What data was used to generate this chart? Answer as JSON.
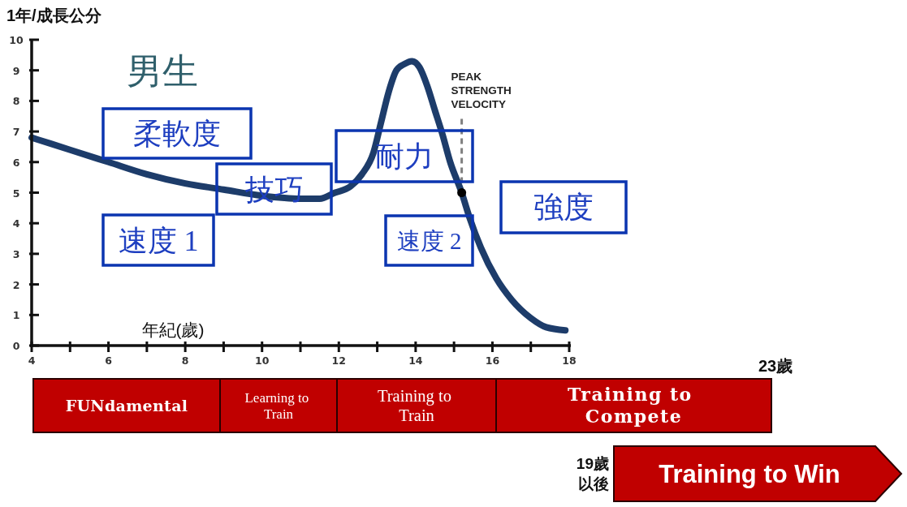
{
  "chart_data": {
    "type": "line",
    "title": "男生",
    "xlabel": "年紀(歲)",
    "ylabel": "1年/成長公分",
    "xlim": [
      4,
      18
    ],
    "ylim": [
      0,
      10
    ],
    "xticks": [
      4,
      {
        "value": 5,
        "label": null
      },
      6,
      {
        "value": 7,
        "label": null
      },
      8,
      {
        "value": 9,
        "label": null
      },
      10,
      {
        "value": 11,
        "label": null
      },
      12,
      {
        "value": 13,
        "label": null
      },
      14,
      {
        "value": 15,
        "label": null
      },
      16,
      {
        "value": 17,
        "label": null
      },
      18
    ],
    "yticks": [
      0,
      1,
      2,
      3,
      4,
      5,
      6,
      7,
      8,
      9,
      10
    ],
    "x": [
      4,
      4.5,
      5,
      6,
      7,
      8,
      9,
      10,
      11,
      11.5,
      11.9,
      12.3,
      12.6,
      12.9,
      13.1,
      13.3,
      13.5,
      13.7,
      13.9,
      14.1,
      14.3,
      14.5,
      14.7,
      14.9,
      15.2,
      15.4,
      15.7,
      16.1,
      16.5,
      17,
      17.4,
      17.9
    ],
    "series": [
      {
        "color": "#1d3c6a",
        "values": [
          6.8,
          6.6,
          6.4,
          6.0,
          5.6,
          5.3,
          5.1,
          4.9,
          4.8,
          4.8,
          5.0,
          5.2,
          5.6,
          6.3,
          7.3,
          8.3,
          9.0,
          9.2,
          9.3,
          9.1,
          8.5,
          7.7,
          6.9,
          6.0,
          5.0,
          4.2,
          3.2,
          2.2,
          1.5,
          0.9,
          0.6,
          0.5
        ]
      },
      {
        "type": "scatter",
        "color": "#000000",
        "marker": "circle",
        "x": [
          15.2
        ],
        "values": [
          5.0
        ]
      }
    ],
    "ref_lines": [
      {
        "axis": "x",
        "value": 15.2,
        "label": "PEAK STRENGTH VELOCITY",
        "color": "#808080",
        "line_style": "dashed"
      }
    ],
    "annotations": [
      "柔軟度",
      "技巧",
      "耐力",
      "速度 1",
      "速度 2",
      "強度",
      "FUNdamental",
      "Learning to Train",
      "Training to Train",
      "Training to Compete",
      "23歲",
      "19歲以後",
      "Training to Win"
    ]
  }
}
